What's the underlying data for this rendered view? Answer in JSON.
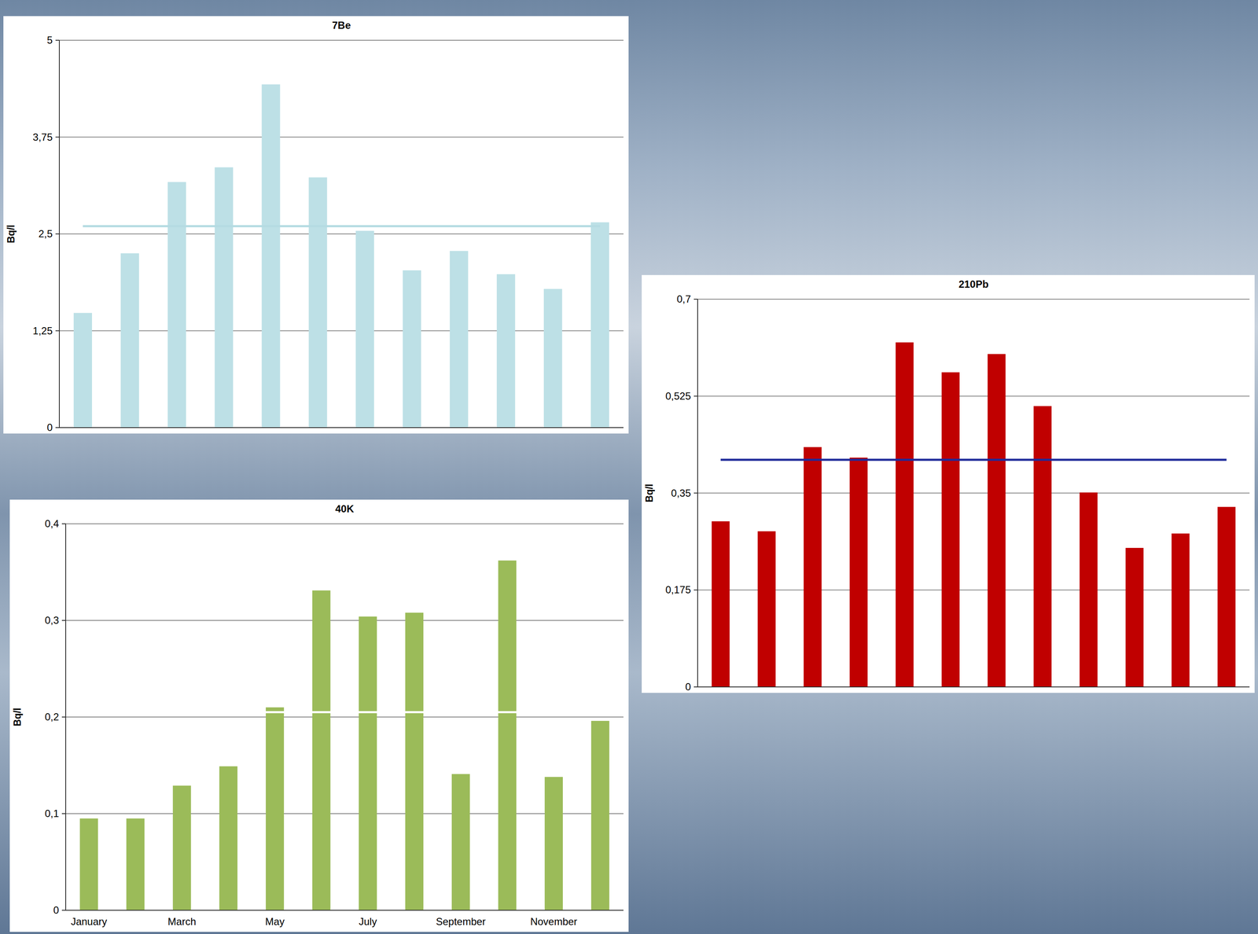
{
  "chart_data": [
    {
      "type": "bar",
      "title": "7Be",
      "ylabel": "Bq/l",
      "categories": [
        null,
        null,
        null,
        null,
        null,
        null,
        null,
        null,
        null,
        null,
        null,
        null
      ],
      "series": [
        {
          "type": "bar",
          "color": "#bde0e6",
          "values": [
            1.48,
            2.25,
            3.17,
            3.36,
            4.43,
            3.23,
            2.54,
            2.03,
            2.28,
            1.98,
            1.79,
            2.65
          ]
        },
        {
          "type": "line",
          "color": "#b5dbe2",
          "values": [
            2.6,
            2.6,
            2.6,
            2.6,
            2.6,
            2.6,
            2.6,
            2.6,
            2.6,
            2.6,
            2.6,
            2.6
          ]
        }
      ],
      "ylim": [
        0,
        5
      ],
      "yticks": [
        0,
        {
          "value": 1.25,
          "label": "1,25"
        },
        {
          "value": 2.5,
          "label": "2,5"
        },
        {
          "value": 3.75,
          "label": "3,75"
        },
        5
      ],
      "grid": true,
      "tick_labels": "y"
    },
    {
      "type": "bar",
      "title": "210Pb",
      "ylabel": "Bq/l",
      "categories": [
        null,
        null,
        null,
        null,
        null,
        null,
        null,
        null,
        null,
        null,
        null,
        null
      ],
      "series": [
        {
          "type": "bar",
          "color": "#c00000",
          "values": [
            0.299,
            0.281,
            0.433,
            0.414,
            0.622,
            0.568,
            0.601,
            0.507,
            0.351,
            0.251,
            0.277,
            0.325
          ]
        },
        {
          "type": "line",
          "color": "#1f2a9a",
          "values": [
            0.41,
            0.41,
            0.41,
            0.41,
            0.41,
            0.41,
            0.41,
            0.41,
            0.41,
            0.41,
            0.41,
            0.41
          ]
        }
      ],
      "ylim": [
        0,
        0.7
      ],
      "yticks": [
        0,
        {
          "value": 0.175,
          "label": "0,175"
        },
        {
          "value": 0.35,
          "label": "0,35"
        },
        {
          "value": 0.525,
          "label": "0,525"
        },
        {
          "value": 0.7,
          "label": "0,7"
        }
      ],
      "grid": true,
      "tick_labels": "y"
    },
    {
      "type": "bar",
      "title": "40K",
      "ylabel": "Bq/l",
      "categories": [
        "January",
        null,
        "March",
        null,
        "May",
        null,
        "July",
        null,
        "September",
        null,
        "November",
        null
      ],
      "series": [
        {
          "type": "bar",
          "color": "#9bbb59",
          "values": [
            0.095,
            0.095,
            0.129,
            0.149,
            0.21,
            0.331,
            0.304,
            0.308,
            0.141,
            0.362,
            0.138,
            0.196
          ]
        },
        {
          "type": "line",
          "color": "#ffffff",
          "values": [
            0.205,
            0.205,
            0.205,
            0.205,
            0.205,
            0.205,
            0.205,
            0.205,
            0.205,
            0.205,
            0.205,
            0.205
          ]
        }
      ],
      "ylim": [
        0,
        0.4
      ],
      "yticks": [
        0,
        {
          "value": 0.1,
          "label": "0,1"
        },
        {
          "value": 0.2,
          "label": "0,2"
        },
        {
          "value": 0.3,
          "label": "0,3"
        },
        {
          "value": 0.4,
          "label": "0,4"
        }
      ],
      "grid": true
    }
  ]
}
